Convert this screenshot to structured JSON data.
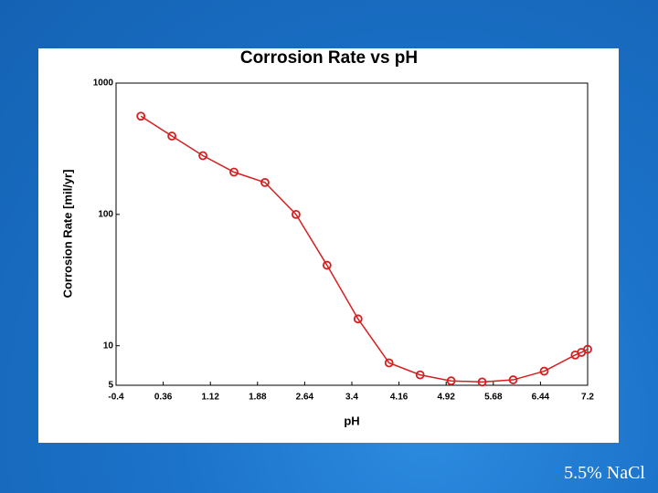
{
  "chart_data": {
    "type": "line",
    "title": "Corrosion Rate  vs  pH",
    "x_label": "pH",
    "y_label": "Corrosion Rate [mil/yr]",
    "x": [
      0,
      0.5,
      1,
      1.5,
      2,
      2.5,
      3,
      3.5,
      4,
      4.5,
      5,
      5.5,
      6,
      6.5,
      7,
      7.1,
      7.2
    ],
    "values": [
      560,
      395,
      280,
      210,
      175,
      100,
      41,
      16,
      7.4,
      6,
      5.4,
      5.3,
      5.5,
      6.4,
      8.5,
      8.9,
      9.4
    ],
    "color": "#d42020",
    "xlim": [
      -0.4,
      7.2
    ],
    "xticks": [
      -0.4,
      0.36,
      1.12,
      1.88,
      2.64,
      3.4,
      4.16,
      4.92,
      5.68,
      6.44,
      7.2
    ],
    "ylim": [
      5,
      1000
    ],
    "yticks": [
      5,
      10,
      100,
      1000
    ],
    "log_y": true,
    "grid": false
  },
  "footer": "5.5% NaCl"
}
